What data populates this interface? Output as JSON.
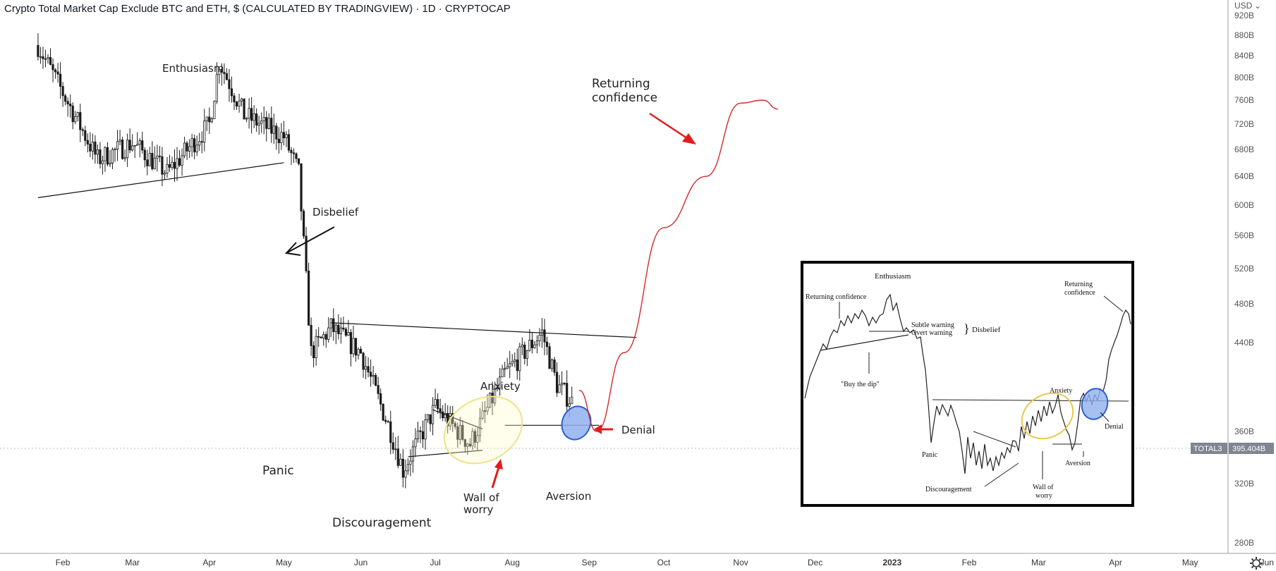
{
  "header": {
    "title": "Crypto Total Market Cap Exclude BTC and ETH, $ (CALCULATED BY TRADINGVIEW) · 1D · CRYPTOCAP",
    "currency": "USD"
  },
  "price_label": {
    "symbol": "TOTAL3",
    "value": "395.404B"
  },
  "colors": {
    "candle": "#1a1a1a",
    "projection": "#d62828",
    "arrow": "#e31b1b",
    "anxiety_ellipse": "#f0e08a",
    "denial_ellipse": "#3a6fd8",
    "denial_fill": "#8fb0ee"
  },
  "annotations": {
    "enthusiasm": "Enthusiasm",
    "disbelief": "Disbelief",
    "panic": "Panic",
    "discouragement": "Discouragement",
    "anxiety": "Anxiety",
    "wall_of_worry_1": "Wall of",
    "wall_of_worry_2": "worry",
    "aversion": "Aversion",
    "denial": "Denial",
    "returning_confidence_1": "Returning",
    "returning_confidence_2": "confidence"
  },
  "inset": {
    "enthusiasm": "Enthusiasm",
    "returning_confidence_left": "Returning confidence",
    "subtle_warning": "Subtle warning",
    "overt_warning": "Overt warning",
    "disbelief": "Disbelief",
    "buy_the_dip": "\"Buy the dip\"",
    "anxiety": "Anxiety",
    "returning_1": "Returning",
    "returning_2": "confidence",
    "denial": "Denial",
    "panic": "Panic",
    "discouragement": "Discouragement",
    "wall_1": "Wall of",
    "wall_2": "worry",
    "aversion": "Aversion"
  },
  "chart_data": {
    "type": "candlestick",
    "title": "Crypto Total Market Cap Exclude BTC and ETH, $ (CALCULATED BY TRADINGVIEW) · 1D · CRYPTOCAP",
    "ylabel": "USD",
    "ylim": [
      270,
      930
    ],
    "y_scale": "log",
    "y_unit": "B",
    "y_ticks": [
      280,
      320,
      360,
      400,
      440,
      480,
      520,
      560,
      600,
      640,
      680,
      720,
      760,
      800,
      840,
      880,
      920
    ],
    "y_tick_labels": [
      "280B",
      "320B",
      "360B",
      "",
      "440B",
      "480B",
      "520B",
      "560B",
      "600B",
      "640B",
      "680B",
      "720B",
      "760B",
      "800B",
      "840B",
      "880B",
      "920B"
    ],
    "x_ticks": [
      "Feb",
      "Mar",
      "Apr",
      "May",
      "Jun",
      "Jul",
      "Aug",
      "Sep",
      "Oct",
      "Nov",
      "Dec",
      "2023",
      "Feb",
      "Mar",
      "Apr",
      "May",
      "Jun"
    ],
    "last_value": 395.404,
    "series": [
      {
        "x": [
          "2022-01-22",
          "2022-02-15",
          "2022-03-01",
          "2022-03-15",
          "2022-04-01",
          "2022-04-05",
          "2022-04-15",
          "2022-05-01",
          "2022-05-07",
          "2022-05-12",
          "2022-05-20",
          "2022-06-01",
          "2022-06-13",
          "2022-06-18",
          "2022-07-01",
          "2022-07-15",
          "2022-07-29",
          "2022-08-13",
          "2022-08-19",
          "2022-08-25"
        ],
        "values": [
          860,
          665,
          690,
          645,
          720,
          830,
          735,
          700,
          645,
          430,
          455,
          430,
          360,
          330,
          380,
          350,
          410,
          450,
          400,
          385
        ]
      }
    ],
    "projection": {
      "x": [
        "2022-08-28",
        "2022-09-04",
        "2022-09-15",
        "2022-10-01",
        "2022-10-18",
        "2022-11-01",
        "2022-11-10",
        "2022-11-16"
      ],
      "values": [
        395,
        360,
        430,
        570,
        640,
        755,
        760,
        745
      ]
    },
    "trendlines": [
      {
        "x": [
          "2022-01-22",
          "2022-05-01"
        ],
        "values": [
          610,
          660
        ]
      },
      {
        "x": [
          "2022-05-20",
          "2022-09-20"
        ],
        "values": [
          460,
          445
        ]
      },
      {
        "x": [
          "2022-06-20",
          "2022-07-20"
        ],
        "values": [
          340,
          345
        ]
      },
      {
        "x": [
          "2022-06-30",
          "2022-07-20"
        ],
        "values": [
          378,
          362
        ]
      },
      {
        "x": [
          "2022-07-29",
          "2022-09-05"
        ],
        "values": [
          365,
          365
        ]
      }
    ],
    "grid": false
  }
}
